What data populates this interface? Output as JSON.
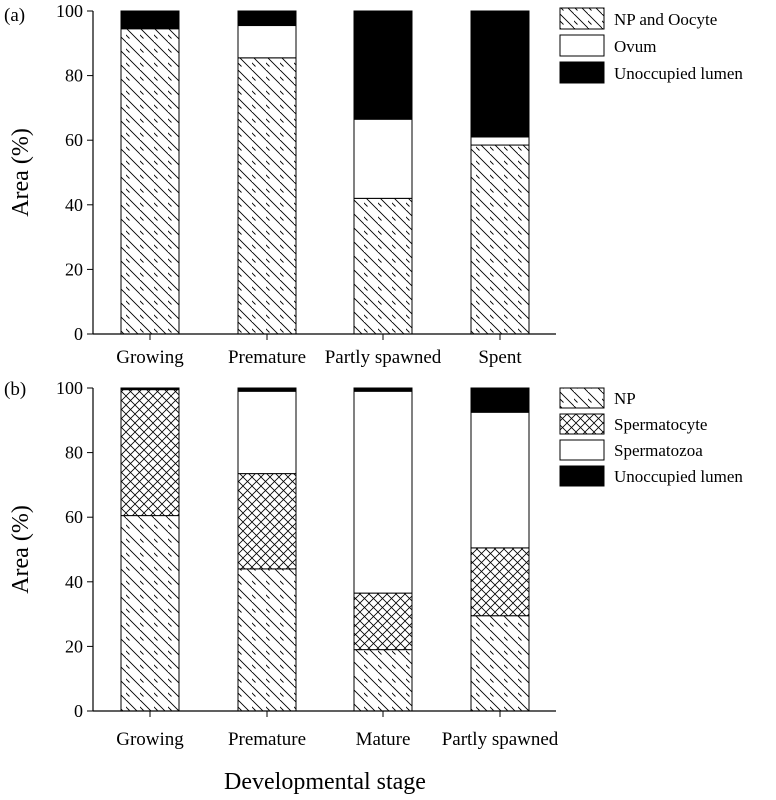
{
  "figure": {
    "xlabel": "Developmental stage"
  },
  "colors": {
    "ink": "#000000",
    "paper": "#ffffff"
  },
  "chart_data": [
    {
      "type": "bar",
      "stacked": true,
      "panel": "(a)",
      "ylabel": "Area (%)",
      "ylim": [
        0,
        100
      ],
      "yticks": [
        "0",
        "20",
        "40",
        "60",
        "80",
        "100"
      ],
      "categories": [
        "Growing",
        "Premature",
        "Partly spawned",
        "Spent"
      ],
      "legend_position": "top-right",
      "series": [
        {
          "name": "NP and Oocyte",
          "pattern": "diagonal-hatch",
          "values": [
            94.5,
            85.5,
            42,
            58.5
          ]
        },
        {
          "name": "Ovum",
          "pattern": "white",
          "values": [
            0,
            10,
            24.5,
            2.5
          ]
        },
        {
          "name": "Unoccupied lumen",
          "pattern": "black",
          "values": [
            5.5,
            4.5,
            33.5,
            39
          ]
        }
      ]
    },
    {
      "type": "bar",
      "stacked": true,
      "panel": "(b)",
      "ylabel": "Area (%)",
      "ylim": [
        0,
        100
      ],
      "yticks": [
        "0",
        "20",
        "40",
        "60",
        "80",
        "100"
      ],
      "categories": [
        "Growing",
        "Premature",
        "Mature",
        "Partly spawned"
      ],
      "legend_position": "top-right",
      "series": [
        {
          "name": "NP",
          "pattern": "diagonal-hatch",
          "values": [
            60.5,
            44,
            19,
            29.5
          ]
        },
        {
          "name": "Spermatocyte",
          "pattern": "cross-hatch",
          "values": [
            39,
            29.5,
            17.5,
            21
          ]
        },
        {
          "name": "Spermatozoa",
          "pattern": "white",
          "values": [
            0,
            25.5,
            62.5,
            42
          ]
        },
        {
          "name": "Unoccupied lumen",
          "pattern": "black",
          "values": [
            0.5,
            1,
            1,
            7.5
          ]
        }
      ]
    }
  ]
}
